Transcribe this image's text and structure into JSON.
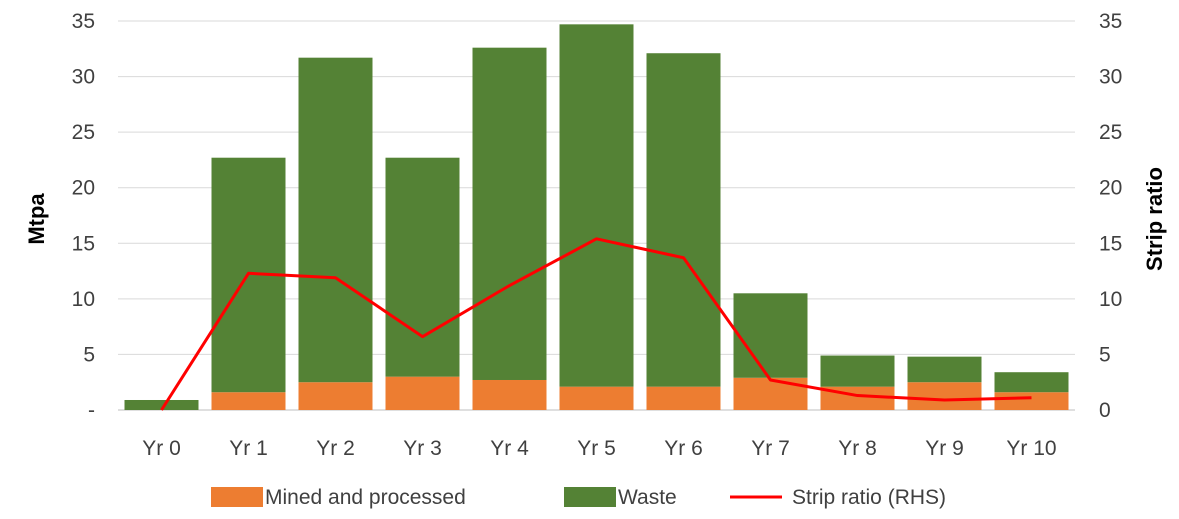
{
  "chart_data": {
    "type": "bar",
    "stacked": true,
    "categories": [
      "Yr 0",
      "Yr 1",
      "Yr 2",
      "Yr 3",
      "Yr 4",
      "Yr 5",
      "Yr 6",
      "Yr 7",
      "Yr 8",
      "Yr 9",
      "Yr 10"
    ],
    "series": [
      {
        "name": "Mined and processed",
        "kind": "bar",
        "axis": "left",
        "color": "#ED7D31",
        "values": [
          0,
          1.6,
          2.5,
          3.0,
          2.7,
          2.1,
          2.1,
          2.9,
          2.1,
          2.5,
          1.6
        ]
      },
      {
        "name": "Waste",
        "kind": "bar",
        "axis": "left",
        "color": "#548235",
        "values": [
          0.9,
          21.1,
          29.2,
          19.7,
          29.9,
          32.6,
          30.0,
          7.6,
          2.8,
          2.3,
          1.8
        ]
      },
      {
        "name": "Strip ratio (RHS)",
        "kind": "line",
        "axis": "right",
        "color": "#FF0000",
        "values": [
          0,
          12.3,
          11.9,
          6.6,
          11.2,
          15.4,
          13.7,
          2.7,
          1.3,
          0.9,
          1.1
        ]
      }
    ],
    "ylabel": "Mtpa",
    "y2label": "Strip ratio",
    "ylim": [
      0,
      35
    ],
    "y2lim": [
      0,
      35
    ],
    "y_ticks": [
      "-",
      "5",
      "10",
      "15",
      "20",
      "25",
      "30",
      "35"
    ],
    "y2_ticks": [
      "0",
      "5",
      "10",
      "15",
      "20",
      "25",
      "30",
      "35"
    ],
    "grid": true,
    "legend": "bottom"
  }
}
